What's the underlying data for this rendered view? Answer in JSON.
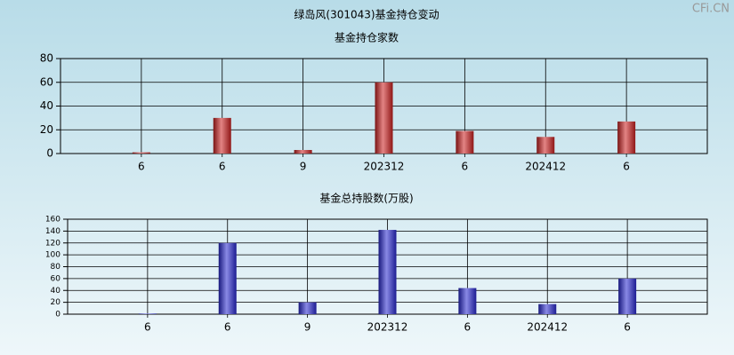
{
  "title": "绿岛风(301043)基金持仓变动",
  "watermark": "CFi.CN",
  "chart_data": [
    {
      "type": "bar",
      "title": "基金持仓家数",
      "color": "#cc2020",
      "categories": [
        "6",
        "6",
        "9",
        "202312",
        "6",
        "202412",
        "6"
      ],
      "values": [
        1,
        30,
        3,
        60,
        19,
        14,
        27
      ],
      "ylim": [
        0,
        80
      ],
      "yticks": [
        0,
        20,
        40,
        60,
        80
      ],
      "grid": true
    },
    {
      "type": "bar",
      "title": "基金总持股数(万股)",
      "color": "#2828d0",
      "categories": [
        "6",
        "6",
        "9",
        "202312",
        "6",
        "202412",
        "6"
      ],
      "values": [
        1,
        120,
        20,
        142,
        44,
        17,
        60
      ],
      "ylim": [
        0,
        160
      ],
      "yticks": [
        0,
        20,
        40,
        60,
        80,
        100,
        120,
        140,
        160
      ],
      "grid": true
    }
  ]
}
